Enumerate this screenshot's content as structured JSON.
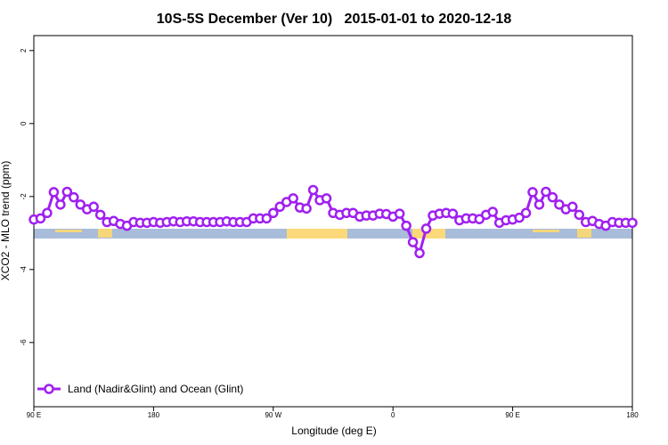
{
  "chart_data": {
    "type": "line",
    "title": "10S-5S December (Ver 10)   2015-01-01 to 2020-12-18",
    "x_label": "Longitude (deg E)",
    "y_label": "XCO2 - MLO trend (ppm)",
    "x": [
      90,
      95,
      100,
      105,
      110,
      115,
      120,
      125,
      130,
      135,
      140,
      145,
      150,
      155,
      160,
      165,
      170,
      175,
      180,
      185,
      190,
      195,
      200,
      205,
      210,
      215,
      220,
      225,
      230,
      235,
      240,
      245,
      250,
      255,
      260,
      265,
      270,
      275,
      280,
      285,
      290,
      295,
      300,
      305,
      310,
      315,
      320,
      325,
      330,
      335,
      340,
      345,
      350,
      355,
      360,
      365,
      370,
      375,
      380,
      385,
      390,
      395,
      400,
      405,
      410,
      415,
      420,
      425,
      430,
      435,
      440,
      445,
      450,
      455,
      460,
      465,
      470,
      475,
      480,
      485,
      490,
      495,
      500,
      505,
      510,
      515,
      520,
      525,
      530,
      535,
      540
    ],
    "series": [
      {
        "name": "Land (Nadir&Glint) and Ocean (Glint)",
        "color": "#a020f0",
        "values": [
          -2.63,
          -2.6,
          -2.45,
          -1.88,
          -2.22,
          -1.87,
          -2.02,
          -2.22,
          -2.35,
          -2.28,
          -2.5,
          -2.7,
          -2.67,
          -2.75,
          -2.8,
          -2.7,
          -2.72,
          -2.72,
          -2.7,
          -2.72,
          -2.7,
          -2.68,
          -2.7,
          -2.68,
          -2.68,
          -2.7,
          -2.7,
          -2.7,
          -2.7,
          -2.68,
          -2.7,
          -2.7,
          -2.7,
          -2.6,
          -2.6,
          -2.6,
          -2.45,
          -2.28,
          -2.15,
          -2.05,
          -2.3,
          -2.33,
          -1.82,
          -2.1,
          -2.05,
          -2.45,
          -2.5,
          -2.45,
          -2.45,
          -2.55,
          -2.52,
          -2.52,
          -2.47,
          -2.48,
          -2.55,
          -2.47,
          -2.8,
          -3.25,
          -3.55,
          -2.88,
          -2.52,
          -2.47,
          -2.45,
          -2.47,
          -2.65,
          -2.6,
          -2.6,
          -2.62,
          -2.5,
          -2.42,
          -2.72,
          -2.65,
          -2.63,
          -2.58,
          -2.45,
          -1.88,
          -2.22,
          -1.87,
          -2.02,
          -2.22,
          -2.35,
          -2.28,
          -2.5,
          -2.7,
          -2.67,
          -2.75,
          -2.8,
          -2.7,
          -2.72,
          -2.72,
          -2.72
        ]
      }
    ],
    "xlim": [
      90,
      540
    ],
    "xticks": [
      {
        "value": 90,
        "label": "90 E"
      },
      180,
      {
        "value": 270,
        "label": "90 W"
      },
      {
        "value": 360,
        "label": "0"
      },
      {
        "value": 450,
        "label": "90 E"
      },
      {
        "value": 540,
        "label": "180"
      }
    ],
    "ylim": [
      -7.76,
      2.41
    ],
    "yticks": [
      2,
      0,
      -2,
      -4,
      -6
    ],
    "legend": "bottom-left"
  }
}
